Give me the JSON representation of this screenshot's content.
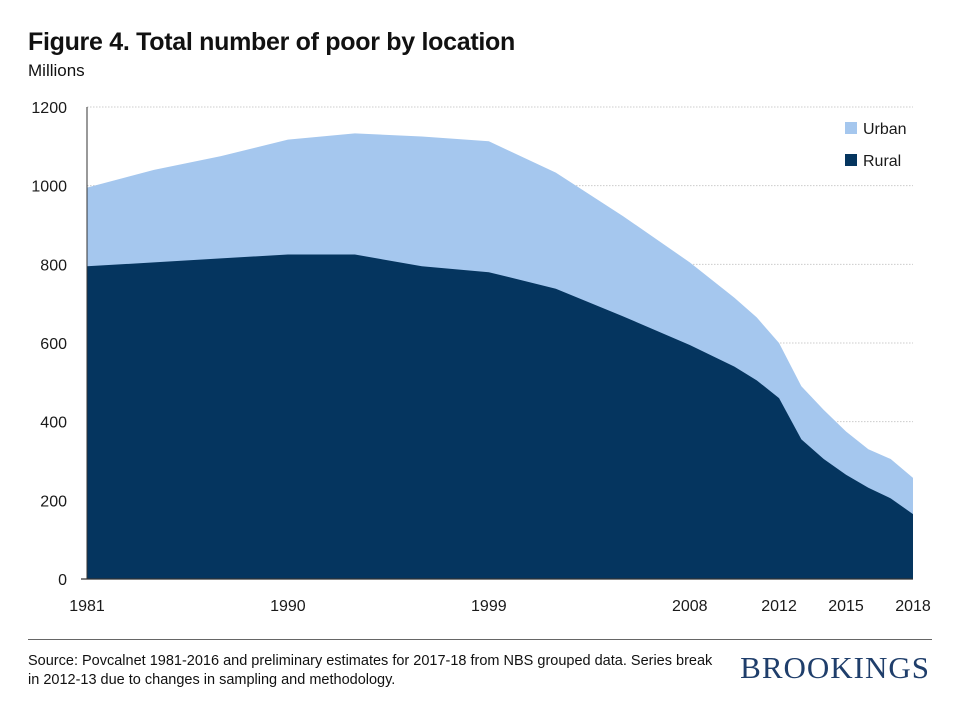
{
  "header": {
    "title": "Figure 4. Total number of poor by location",
    "subtitle": "Millions"
  },
  "footer": {
    "source": "Source: Povcalnet 1981-2016 and preliminary estimates for 2017-18 from NBS grouped data. Series break in 2012-13 due to changes in sampling and methodology.",
    "logo": "BROOKINGS"
  },
  "colors": {
    "rural": "#05355f",
    "urban": "#a5c7ee",
    "grid": "#cccccc",
    "axis": "#333333"
  },
  "chart_data": {
    "type": "area",
    "stacked": true,
    "title": "Figure 4. Total number of poor by location",
    "ylabel": "Millions",
    "ylim": [
      0,
      1200
    ],
    "yticks": [
      0,
      200,
      400,
      600,
      800,
      1000,
      1200
    ],
    "xlim": [
      1981,
      2018
    ],
    "xticks": [
      "1981",
      "1990",
      "1999",
      "2008",
      "2012",
      "2015",
      "2018"
    ],
    "grid": true,
    "legend_position": "top-right",
    "x": [
      1981,
      1984,
      1987,
      1990,
      1993,
      1996,
      1999,
      2002,
      2005,
      2008,
      2010,
      2011,
      2012,
      2013,
      2014,
      2015,
      2016,
      2017,
      2018
    ],
    "series": [
      {
        "name": "Rural",
        "values": [
          795,
          805,
          815,
          825,
          825,
          795,
          780,
          738,
          668,
          595,
          540,
          505,
          460,
          355,
          305,
          265,
          232,
          205,
          165
        ]
      },
      {
        "name": "Urban",
        "values": [
          200,
          235,
          260,
          292,
          308,
          330,
          333,
          295,
          255,
          210,
          175,
          160,
          140,
          135,
          125,
          110,
          98,
          100,
          92
        ]
      }
    ],
    "legend": [
      "Urban",
      "Rural"
    ]
  }
}
